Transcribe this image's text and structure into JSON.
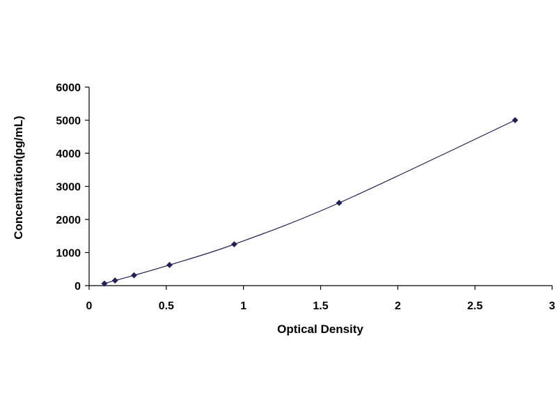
{
  "chart_data": {
    "type": "scatter",
    "title": "",
    "xlabel": "Optical Density",
    "ylabel": "Concentration(pg/mL)",
    "xlim": [
      0,
      3
    ],
    "ylim": [
      0,
      6000
    ],
    "x_ticks": [
      0,
      0.5,
      1,
      1.5,
      2,
      2.5,
      3
    ],
    "x_tick_labels": [
      "0",
      "0.5",
      "1",
      "1.5",
      "2",
      "2.5",
      "3"
    ],
    "y_ticks": [
      0,
      1000,
      2000,
      3000,
      4000,
      5000,
      6000
    ],
    "y_tick_labels": [
      "0",
      "1000",
      "2000",
      "3000",
      "4000",
      "5000",
      "6000"
    ],
    "grid": false,
    "legend": "none",
    "series": [
      {
        "x": [
          0.099,
          0.168,
          0.291,
          0.521,
          0.94,
          1.62,
          2.76
        ],
        "y": [
          62,
          156,
          312,
          625,
          1250,
          2500,
          5000
        ],
        "marker": "diamond",
        "line": "smooth",
        "color": "#1f1f5a"
      }
    ]
  }
}
